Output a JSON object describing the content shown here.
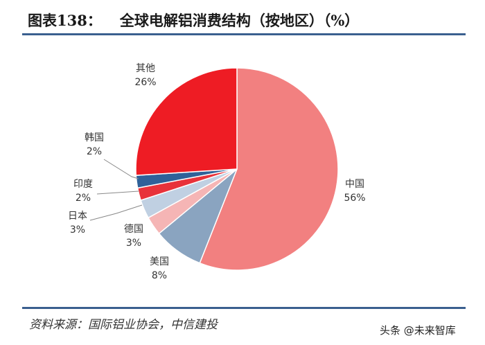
{
  "header": {
    "figure_label": "图表138：",
    "title_text": "全球电解铝消费结构（按地区）（%）"
  },
  "footer": {
    "source": "资料来源：国际铝业协会，中信建投",
    "watermark": "头条 @未来智库"
  },
  "chart_data": {
    "type": "pie",
    "title": "全球电解铝消费结构（按地区）（%）",
    "slices": [
      {
        "label": "中国",
        "value": 56,
        "value_label": "56%",
        "color": "#f28080"
      },
      {
        "label": "美国",
        "value": 8,
        "value_label": "8%",
        "color": "#8aa4c0"
      },
      {
        "label": "德国",
        "value": 3,
        "value_label": "3%",
        "color": "#f5b5b5"
      },
      {
        "label": "日本",
        "value": 3,
        "value_label": "3%",
        "color": "#c0d0e2"
      },
      {
        "label": "印度",
        "value": 2,
        "value_label": "2%",
        "color": "#e8323a"
      },
      {
        "label": "韩国",
        "value": 2,
        "value_label": "2%",
        "color": "#2f6199"
      },
      {
        "label": "其他",
        "value": 26,
        "value_label": "26%",
        "color": "#ee1c24"
      }
    ],
    "legend": "none",
    "data_labels": "outside-with-leaders"
  }
}
